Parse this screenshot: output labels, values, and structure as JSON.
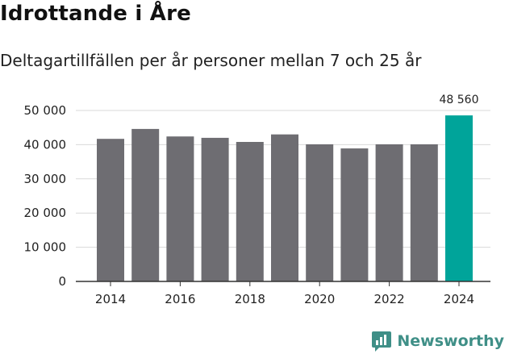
{
  "title": "Idrottande i Åre",
  "subtitle": "Deltagartillfällen per år personer mellan 7 och 25 år",
  "brand": {
    "name": "Newsworthy",
    "icon": "newsworthy-logo-icon"
  },
  "colors": {
    "bar": "#6e6d72",
    "highlight": "#00a49a",
    "grid": "#d9d9d9",
    "axis": "#333333",
    "brand": "#3f8f87"
  },
  "chart_data": {
    "type": "bar",
    "title": "Idrottande i Åre",
    "subtitle": "Deltagartillfällen per år personer mellan 7 och 25 år",
    "categories": [
      "2014",
      "2015",
      "2016",
      "2017",
      "2018",
      "2019",
      "2020",
      "2021",
      "2022",
      "2023",
      "2024"
    ],
    "values": [
      41700,
      44600,
      42400,
      42000,
      40800,
      43000,
      40100,
      38900,
      40100,
      40100,
      48560
    ],
    "highlight_index": 10,
    "data_labels": [
      {
        "index": 10,
        "text": "48 560"
      }
    ],
    "x_tick_labels": [
      "2014",
      "2016",
      "2018",
      "2020",
      "2022",
      "2024"
    ],
    "y_ticks": [
      0,
      10000,
      20000,
      30000,
      40000,
      50000
    ],
    "y_tick_labels": [
      "0",
      "10 000",
      "20 000",
      "30 000",
      "40 000",
      "50 000"
    ],
    "ylim": [
      0,
      50000
    ],
    "xlabel": "",
    "ylabel": "",
    "grid": true
  }
}
